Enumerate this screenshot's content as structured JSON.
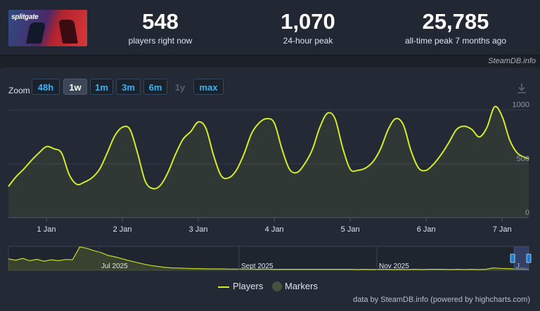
{
  "header": {
    "game_logo_text": "splitgate",
    "stats": [
      {
        "value": "548",
        "label": "players right now"
      },
      {
        "value": "1,070",
        "label": "24-hour peak"
      },
      {
        "value": "25,785",
        "label": "all-time peak 7 months ago"
      }
    ],
    "source": "SteamDB.info"
  },
  "zoom": {
    "label": "Zoom",
    "buttons": [
      {
        "label": "48h",
        "state": "normal"
      },
      {
        "label": "1w",
        "state": "active"
      },
      {
        "label": "1m",
        "state": "normal"
      },
      {
        "label": "3m",
        "state": "normal"
      },
      {
        "label": "6m",
        "state": "normal"
      },
      {
        "label": "1y",
        "state": "disabled"
      },
      {
        "label": "max",
        "state": "normal"
      }
    ]
  },
  "chart_data": {
    "type": "line",
    "title": "",
    "xlabel": "",
    "ylabel": "",
    "ylim": [
      0,
      1070
    ],
    "y_ticks": [
      0,
      500,
      1000
    ],
    "x_ticks": [
      "1 Jan",
      "2 Jan",
      "3 Jan",
      "4 Jan",
      "5 Jan",
      "6 Jan",
      "7 Jan"
    ],
    "grid": true,
    "series": [
      {
        "name": "Players",
        "color": "#d4ea2b",
        "x_day": [
          0.5,
          0.6,
          0.7,
          0.8,
          0.9,
          1.0,
          1.1,
          1.2,
          1.3,
          1.4,
          1.5,
          1.6,
          1.7,
          1.8,
          1.9,
          2.0,
          2.1,
          2.2,
          2.3,
          2.4,
          2.5,
          2.6,
          2.7,
          2.8,
          2.9,
          3.0,
          3.1,
          3.2,
          3.3,
          3.4,
          3.5,
          3.6,
          3.7,
          3.8,
          3.9,
          4.0,
          4.1,
          4.2,
          4.3,
          4.4,
          4.5,
          4.6,
          4.7,
          4.8,
          4.9,
          5.0,
          5.1,
          5.2,
          5.3,
          5.4,
          5.5,
          5.6,
          5.7,
          5.8,
          5.9,
          6.0,
          6.1,
          6.2,
          6.3,
          6.4,
          6.5,
          6.6,
          6.7,
          6.8,
          6.9,
          7.0,
          7.1,
          7.2,
          7.3,
          7.35
        ],
        "values": [
          290,
          380,
          450,
          530,
          600,
          660,
          640,
          600,
          400,
          310,
          330,
          370,
          450,
          600,
          760,
          840,
          820,
          600,
          340,
          270,
          300,
          420,
          590,
          730,
          800,
          890,
          830,
          580,
          390,
          370,
          440,
          590,
          780,
          880,
          920,
          880,
          640,
          450,
          420,
          500,
          630,
          840,
          970,
          920,
          650,
          450,
          440,
          460,
          520,
          640,
          820,
          920,
          860,
          620,
          460,
          440,
          500,
          590,
          700,
          820,
          850,
          820,
          750,
          840,
          1030,
          940,
          720,
          600,
          560,
          548
        ]
      }
    ],
    "navigator": {
      "labels": [
        "Jul 2025",
        "Sept 2025",
        "Nov 2025",
        "J..."
      ]
    },
    "legend": [
      {
        "name": "Players",
        "color": "#d4ea2b"
      },
      {
        "name": "Markers",
        "color": "#44543c"
      }
    ],
    "legend_position": "bottom-center"
  },
  "credits": "data by SteamDB.info (powered by highcharts.com)"
}
